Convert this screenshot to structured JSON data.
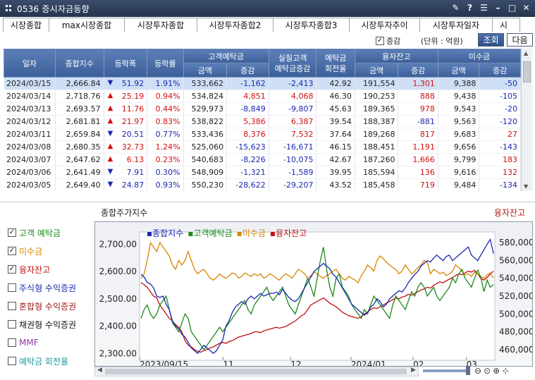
{
  "window": {
    "title": "0536 증시자금동향"
  },
  "tabs": [
    "시장종합",
    "max시장종합",
    "시장투자종합",
    "시장투자종합2",
    "시장투자종합3",
    "시장투자추이",
    "시장투자일자",
    "시"
  ],
  "toolbar": {
    "increase_label": "증감",
    "unit_label": "(단위 : 억원)",
    "lookup_button": "조회",
    "next_button": "다음"
  },
  "table": {
    "headers": {
      "date": "일자",
      "index": "종합지수",
      "change": "등락폭",
      "rate": "등락률",
      "deposit": "고객예탁금",
      "real_deposit": "실질고객\n예탁금증감",
      "turnover": "예탁금\n회전율",
      "credit": "융자잔고",
      "unpaid": "미수금",
      "amount": "금액",
      "delta": "증감"
    },
    "rows": [
      {
        "date": "2024/03/15",
        "index": "2,666.84",
        "dir": "down",
        "change": "51.92",
        "rate": "1.91%",
        "dep_amt": "533,662",
        "dep_chg": "-1,162",
        "real": "-2,413",
        "turn": "42.92",
        "cr_amt": "191,554",
        "cr_chg": "1,301",
        "un_amt": "9,388",
        "un_chg": "-50"
      },
      {
        "date": "2024/03/14",
        "index": "2,718.76",
        "dir": "up",
        "change": "25.19",
        "rate": "0.94%",
        "dep_amt": "534,824",
        "dep_chg": "4,851",
        "real": "4,068",
        "turn": "46.30",
        "cr_amt": "190,253",
        "cr_chg": "888",
        "un_amt": "9,438",
        "un_chg": "-105"
      },
      {
        "date": "2024/03/13",
        "index": "2,693.57",
        "dir": "up",
        "change": "11.76",
        "rate": "0.44%",
        "dep_amt": "529,973",
        "dep_chg": "-8,849",
        "real": "-9,807",
        "turn": "45.63",
        "cr_amt": "189,365",
        "cr_chg": "978",
        "un_amt": "9,543",
        "un_chg": "-20"
      },
      {
        "date": "2024/03/12",
        "index": "2,681.81",
        "dir": "up",
        "change": "21.97",
        "rate": "0.83%",
        "dep_amt": "538,822",
        "dep_chg": "5,386",
        "real": "6,387",
        "turn": "39.54",
        "cr_amt": "188,387",
        "cr_chg": "-881",
        "un_amt": "9,563",
        "un_chg": "-120"
      },
      {
        "date": "2024/03/11",
        "index": "2,659.84",
        "dir": "down",
        "change": "20.51",
        "rate": "0.77%",
        "dep_amt": "533,436",
        "dep_chg": "8,376",
        "real": "7,532",
        "turn": "37.64",
        "cr_amt": "189,268",
        "cr_chg": "817",
        "un_amt": "9,683",
        "un_chg": "27"
      },
      {
        "date": "2024/03/08",
        "index": "2,680.35",
        "dir": "up",
        "change": "32.73",
        "rate": "1.24%",
        "dep_amt": "525,060",
        "dep_chg": "-15,623",
        "real": "-16,671",
        "turn": "46.15",
        "cr_amt": "188,451",
        "cr_chg": "1,191",
        "un_amt": "9,656",
        "un_chg": "-143"
      },
      {
        "date": "2024/03/07",
        "index": "2,647.62",
        "dir": "up",
        "change": "6.13",
        "rate": "0.23%",
        "dep_amt": "540,683",
        "dep_chg": "-8,226",
        "real": "-10,075",
        "turn": "42.67",
        "cr_amt": "187,260",
        "cr_chg": "1,666",
        "un_amt": "9,799",
        "un_chg": "183"
      },
      {
        "date": "2024/03/06",
        "index": "2,641.49",
        "dir": "down",
        "change": "7.91",
        "rate": "0.30%",
        "dep_amt": "548,909",
        "dep_chg": "-1,321",
        "real": "-1,589",
        "turn": "39.95",
        "cr_amt": "185,594",
        "cr_chg": "136",
        "un_amt": "9,616",
        "un_chg": "132"
      },
      {
        "date": "2024/03/05",
        "index": "2,649.40",
        "dir": "down",
        "change": "24.87",
        "rate": "0.93%",
        "dep_amt": "550,230",
        "dep_chg": "-28,622",
        "real": "-29,207",
        "turn": "43.52",
        "cr_amt": "185,458",
        "cr_chg": "719",
        "un_amt": "9,484",
        "un_chg": "-134"
      }
    ]
  },
  "chart_panel": {
    "title_left": "종합주가지수",
    "title_right": "융자잔고",
    "options": [
      {
        "label": "고객 예탁금",
        "checked": true,
        "color": "#1a8a1a"
      },
      {
        "label": "미수금",
        "checked": true,
        "color": "#d98400"
      },
      {
        "label": "융자잔고",
        "checked": true,
        "color": "#c01010"
      },
      {
        "label": "주식형 수익증권",
        "checked": false,
        "color": "#1a28b0"
      },
      {
        "label": "혼합형 수익증권",
        "checked": false,
        "color": "#a01818"
      },
      {
        "label": "채권형 수익증권",
        "checked": false,
        "color": "#111111"
      },
      {
        "label": "MMF",
        "checked": false,
        "color": "#8a3aa0"
      },
      {
        "label": "예탁금 회전율",
        "checked": false,
        "color": "#1a9aa0"
      }
    ]
  },
  "chart_data": {
    "type": "line",
    "legend": [
      "종합지수",
      "고객예탁금",
      "미수금",
      "융자잔고"
    ],
    "colors": {
      "종합지수": "#1a28b0",
      "고객예탁금": "#1a8a1a",
      "미수금": "#d98400",
      "융자잔고": "#c01010"
    },
    "y_left_ticks": [
      "2,700.00",
      "2,600.00",
      "2,500.00",
      "2,400.00",
      "2,300.00"
    ],
    "y_left_range": [
      2275,
      2745
    ],
    "y_right_ticks": [
      "580,000",
      "560,000",
      "540,000",
      "520,000",
      "500,000",
      "480,000",
      "460,000"
    ],
    "y_right_range": [
      448000,
      592000
    ],
    "x_ticks": [
      "2023/09/15",
      "11",
      "12",
      "2024/01",
      "02",
      "03"
    ],
    "index_series": [
      2590,
      2580,
      2560,
      2555,
      2540,
      2510,
      2505,
      2510,
      2480,
      2460,
      2420,
      2400,
      2390,
      2370,
      2360,
      2340,
      2320,
      2310,
      2300,
      2315,
      2330,
      2320,
      2310,
      2300,
      2310,
      2330,
      2350,
      2400,
      2420,
      2450,
      2470,
      2480,
      2490,
      2480,
      2500,
      2510,
      2500,
      2510,
      2520,
      2510,
      2515,
      2520,
      2520,
      2525,
      2515,
      2535,
      2520,
      2505,
      2495,
      2490,
      2500,
      2520,
      2540,
      2560,
      2580,
      2600,
      2610,
      2620,
      2630,
      2620,
      2610,
      2590,
      2580,
      2560,
      2540,
      2520,
      2500,
      2480,
      2470,
      2460,
      2450,
      2440,
      2450,
      2470,
      2480,
      2500,
      2490,
      2470,
      2480,
      2500,
      2510,
      2520,
      2530,
      2525,
      2540,
      2560,
      2575,
      2590,
      2600,
      2620,
      2630,
      2640,
      2635,
      2650,
      2660,
      2650,
      2640,
      2655,
      2660,
      2640,
      2650,
      2660,
      2670,
      2680,
      2690,
      2660,
      2650,
      2640,
      2660,
      2680,
      2700,
      2718,
      2666
    ],
    "deposit_series": [
      495,
      505,
      510,
      500,
      495,
      500,
      510,
      515,
      520,
      505,
      490,
      485,
      480,
      490,
      500,
      495,
      480,
      475,
      470,
      465,
      460,
      465,
      470,
      475,
      480,
      485,
      480,
      485,
      490,
      495,
      500,
      505,
      510,
      515,
      505,
      500,
      510,
      515,
      520,
      525,
      530,
      520,
      515,
      520,
      525,
      530,
      520,
      510,
      505,
      500,
      510,
      520,
      530,
      540,
      530,
      520,
      540,
      560,
      575,
      550,
      530,
      520,
      540,
      545,
      530,
      525,
      520,
      510,
      505,
      500,
      495,
      505,
      500,
      510,
      520,
      515,
      510,
      505,
      500,
      495,
      510,
      520,
      515,
      510,
      505,
      515,
      525,
      520,
      530,
      535,
      530,
      520,
      525,
      530,
      520,
      515,
      520,
      525,
      530,
      540,
      535,
      545,
      550,
      540,
      535,
      530,
      540,
      549,
      541,
      525,
      538,
      530,
      533
    ],
    "unpaid_series": [
      540,
      545,
      560,
      580,
      575,
      570,
      580,
      575,
      570,
      565,
      555,
      550,
      560,
      555,
      560,
      570,
      560,
      550,
      545,
      548,
      550,
      545,
      540,
      538,
      541,
      545,
      542,
      540,
      543,
      546,
      545,
      540,
      542,
      546,
      544,
      542,
      545,
      543,
      545,
      540,
      542,
      545,
      543,
      540,
      538,
      542,
      545,
      543,
      540,
      545,
      550,
      548,
      545,
      540,
      543,
      547,
      545,
      542,
      540,
      543,
      545,
      548,
      550,
      545,
      540,
      538,
      542,
      540,
      538,
      535,
      543,
      548,
      555,
      552,
      548,
      560,
      565,
      562,
      558,
      555,
      552,
      550,
      545,
      548,
      555,
      550,
      545,
      548,
      552,
      555,
      560,
      558,
      545,
      550,
      548,
      545,
      547,
      543,
      545,
      548,
      555,
      552,
      548,
      544,
      545,
      542,
      547,
      545,
      542,
      540,
      544,
      546,
      540
    ],
    "credit_series": [
      535,
      533,
      530,
      525,
      520,
      518,
      510,
      505,
      500,
      495,
      492,
      488,
      485,
      480,
      470,
      465,
      463,
      460,
      458,
      457,
      459,
      460,
      462,
      463,
      465,
      467,
      468,
      467,
      469,
      470,
      472,
      474,
      475,
      476,
      477,
      478,
      480,
      480,
      479,
      481,
      482,
      483,
      484,
      485,
      484,
      485,
      486,
      488,
      490,
      492,
      495,
      498,
      500,
      505,
      510,
      512,
      514,
      516,
      518,
      515,
      512,
      510,
      508,
      505,
      502,
      500,
      498,
      497,
      496,
      495,
      497,
      500,
      502,
      505,
      507,
      506,
      508,
      510,
      512,
      514,
      516,
      518,
      517,
      519,
      520,
      522,
      521,
      523,
      525,
      527,
      528,
      530,
      529,
      532,
      534,
      536,
      535,
      537,
      539,
      541,
      543,
      545,
      544,
      546,
      548,
      547,
      549,
      545,
      540,
      538,
      541,
      545,
      548
    ]
  },
  "scrollbars": {
    "table_vertical": 0.05,
    "chart_horizontal": 0.97
  }
}
